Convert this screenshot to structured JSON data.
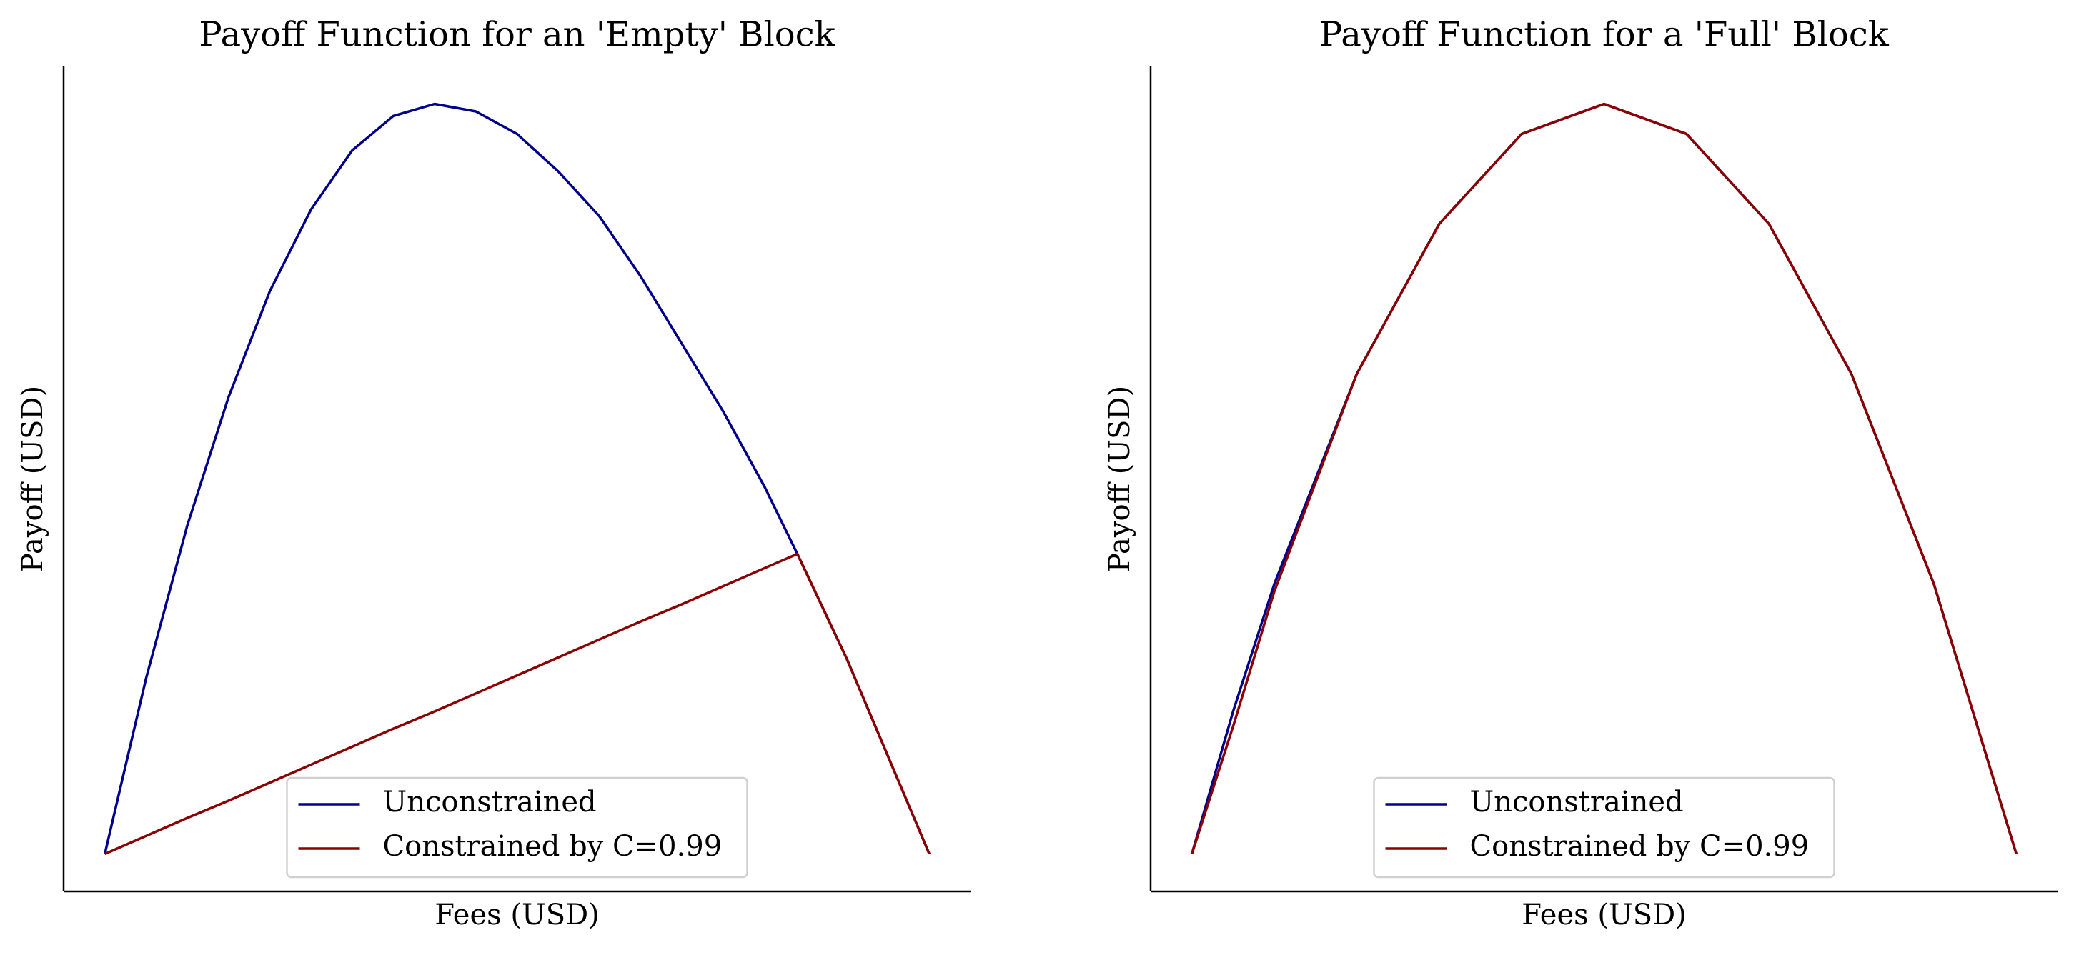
{
  "chart_data": [
    {
      "type": "line",
      "title": "Payoff Function for an 'Empty' Block",
      "xlabel": "Fees (USD)",
      "ylabel": "Payoff (USD)",
      "x": [
        0,
        0.05,
        0.1,
        0.15,
        0.2,
        0.25,
        0.3,
        0.35,
        0.4,
        0.45,
        0.5,
        0.55,
        0.6,
        0.65,
        0.7,
        0.75,
        0.8,
        0.84,
        0.9,
        0.95,
        1.0
      ],
      "series": [
        {
          "name": "Unconstrained",
          "color": "#00008b",
          "values": [
            0,
            0.234,
            0.438,
            0.609,
            0.75,
            0.859,
            0.938,
            0.984,
            1.0,
            0.99,
            0.96,
            0.91,
            0.85,
            0.77,
            0.68,
            0.59,
            0.49,
            0.4,
            0.26,
            0.13,
            0
          ]
        },
        {
          "name": "Constrained by C=0.99",
          "color": "#8b0000",
          "values": [
            0,
            0.024,
            0.048,
            0.071,
            0.095,
            0.119,
            0.143,
            0.167,
            0.19,
            0.214,
            0.238,
            0.262,
            0.286,
            0.31,
            0.333,
            0.357,
            0.381,
            0.4,
            0.26,
            0.13,
            0
          ]
        }
      ],
      "xlim": [
        -0.05,
        1.05
      ],
      "ylim": [
        -0.05,
        1.05
      ],
      "legend": "lower center"
    },
    {
      "type": "line",
      "title": "Payoff Function for a 'Full' Block",
      "xlabel": "Fees (USD)",
      "ylabel": "Payoff (USD)",
      "x": [
        0,
        0.05,
        0.1,
        0.2,
        0.3,
        0.4,
        0.5,
        0.6,
        0.7,
        0.8,
        0.9,
        1.0
      ],
      "series": [
        {
          "name": "Unconstrained",
          "color": "#00008b",
          "values": [
            0,
            0.19,
            0.36,
            0.64,
            0.84,
            0.96,
            1.0,
            0.96,
            0.84,
            0.64,
            0.36,
            0
          ]
        },
        {
          "name": "Constrained by C=0.99",
          "color": "#8b0000",
          "values": [
            0,
            0.17,
            0.35,
            0.64,
            0.84,
            0.96,
            1.0,
            0.96,
            0.84,
            0.64,
            0.36,
            0
          ]
        }
      ],
      "xlim": [
        -0.05,
        1.05
      ],
      "ylim": [
        -0.05,
        1.05
      ],
      "legend": "lower center"
    }
  ]
}
